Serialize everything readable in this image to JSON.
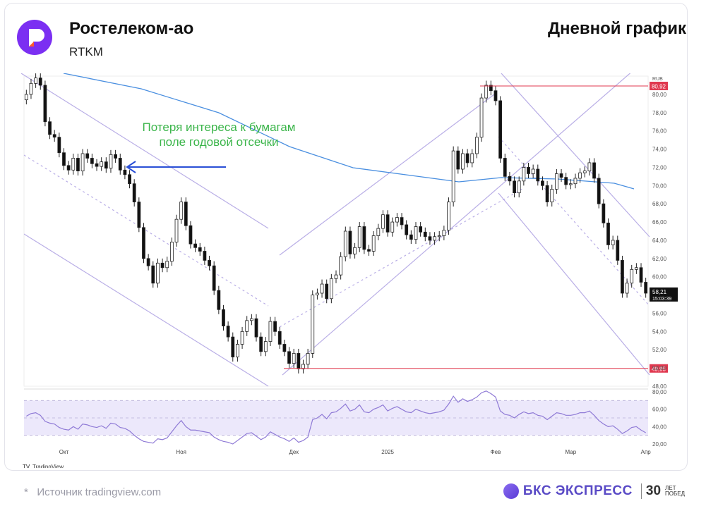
{
  "header": {
    "title": "Ростелеком-ао",
    "ticker": "RTKM",
    "period": "Дневной график"
  },
  "annotation": {
    "line1": "Потеря интереса к бумагам",
    "line2": "поле годовой отсечки"
  },
  "footer": {
    "source": "Источник tradingview.com",
    "source_bullet": "*",
    "brand": "БКС ЭКСПРЕСС",
    "brand_30": "30",
    "brand_years": "ЛЕТ",
    "brand_wins": "ПОБЕД"
  },
  "colors": {
    "up": "#ffffff",
    "down": "#111111",
    "ma": "#4a8fe0",
    "channel": "#b9aee6",
    "level": "#e0384f",
    "annotation": "#3bb54a",
    "arrow": "#2a4fd6",
    "rsi": "#8f7ad6",
    "rsi_band": "#ece8fb"
  },
  "chart_data": {
    "type": "candlestick",
    "currency": "RUB",
    "ylim": [
      48,
      82
    ],
    "y_ticks": [
      "80,00",
      "78,00",
      "76,00",
      "74,00",
      "72,00",
      "70,00",
      "68,00",
      "66,00",
      "64,00",
      "62,00",
      "60,00",
      "58,00",
      "56,00",
      "54,00",
      "52,00",
      "50,00",
      "48,00"
    ],
    "x_ticks": [
      "Окт",
      "Ноя",
      "Дек",
      "2025",
      "Фев",
      "Мар",
      "Апр"
    ],
    "levels": [
      {
        "label": "80,92",
        "value": 80.92
      },
      {
        "label": "49,95",
        "value": 49.95
      }
    ],
    "last_price": {
      "label": "58,21",
      "timer": "15:03:39",
      "value": 58.21
    },
    "close": [
      80.0,
      81.2,
      81.8,
      81.0,
      77.0,
      75.6,
      75.3,
      73.6,
      72.2,
      71.7,
      73.0,
      71.6,
      73.5,
      73.0,
      72.4,
      72.1,
      72.6,
      71.9,
      73.4,
      73.0,
      71.7,
      71.2,
      70.2,
      68.2,
      65.4,
      62.0,
      61.2,
      59.3,
      61.5,
      61.0,
      61.7,
      63.8,
      66.3,
      68.2,
      65.6,
      63.6,
      63.2,
      62.8,
      61.8,
      61.2,
      58.5,
      56.4,
      54.6,
      53.4,
      51.2,
      52.6,
      54.0,
      55.2,
      55.4,
      53.4,
      51.8,
      52.9,
      55.1,
      54.0,
      52.6,
      51.8,
      50.5,
      51.6,
      49.9,
      50.4,
      51.6,
      58.0,
      58.2,
      59.2,
      57.6,
      59.8,
      60.2,
      62.2,
      65.0,
      62.5,
      63.2,
      65.5,
      63.0,
      62.8,
      64.5,
      65.3,
      66.8,
      64.9,
      66.0,
      66.5,
      65.7,
      64.6,
      64.1,
      65.5,
      64.9,
      64.4,
      64.0,
      64.4,
      64.5,
      65.1,
      68.2,
      73.8,
      71.8,
      73.5,
      72.5,
      73.5,
      75.3,
      79.6,
      81.0,
      80.4,
      79.3,
      73.0,
      71.0,
      70.5,
      69.2,
      70.5,
      72.0,
      71.3,
      71.8,
      70.5,
      70.0,
      68.2,
      69.6,
      71.3,
      70.9,
      70.1,
      70.2,
      70.8,
      71.4,
      71.6,
      72.5,
      70.8,
      68.0,
      65.9,
      63.5,
      64.0,
      61.8,
      58.2,
      59.3,
      60.8,
      61.0,
      59.4,
      58.2
    ],
    "rsi": {
      "ylim": [
        20,
        80
      ],
      "ticks": [
        "80,00",
        "60,00",
        "40,00",
        "20,00"
      ],
      "band": [
        30,
        70
      ],
      "values": [
        52,
        55,
        56,
        53,
        46,
        44,
        43,
        39,
        37,
        36,
        40,
        37,
        43,
        42,
        40,
        39,
        41,
        38,
        44,
        43,
        39,
        38,
        35,
        30,
        26,
        23,
        22,
        21,
        26,
        25,
        27,
        34,
        41,
        47,
        40,
        36,
        36,
        35,
        34,
        33,
        28,
        25,
        23,
        22,
        20,
        24,
        28,
        32,
        33,
        29,
        25,
        28,
        34,
        31,
        28,
        26,
        23,
        27,
        22,
        24,
        28,
        48,
        50,
        54,
        49,
        56,
        57,
        61,
        66,
        58,
        60,
        65,
        57,
        56,
        60,
        62,
        65,
        58,
        61,
        63,
        60,
        57,
        56,
        60,
        58,
        56,
        55,
        56,
        57,
        59,
        66,
        75,
        68,
        72,
        69,
        71,
        74,
        79,
        81,
        78,
        74,
        58,
        54,
        53,
        50,
        54,
        57,
        55,
        56,
        53,
        52,
        48,
        52,
        56,
        55,
        53,
        53,
        54,
        56,
        56,
        58,
        53,
        47,
        43,
        40,
        41,
        37,
        32,
        35,
        39,
        40,
        36,
        33
      ]
    }
  }
}
